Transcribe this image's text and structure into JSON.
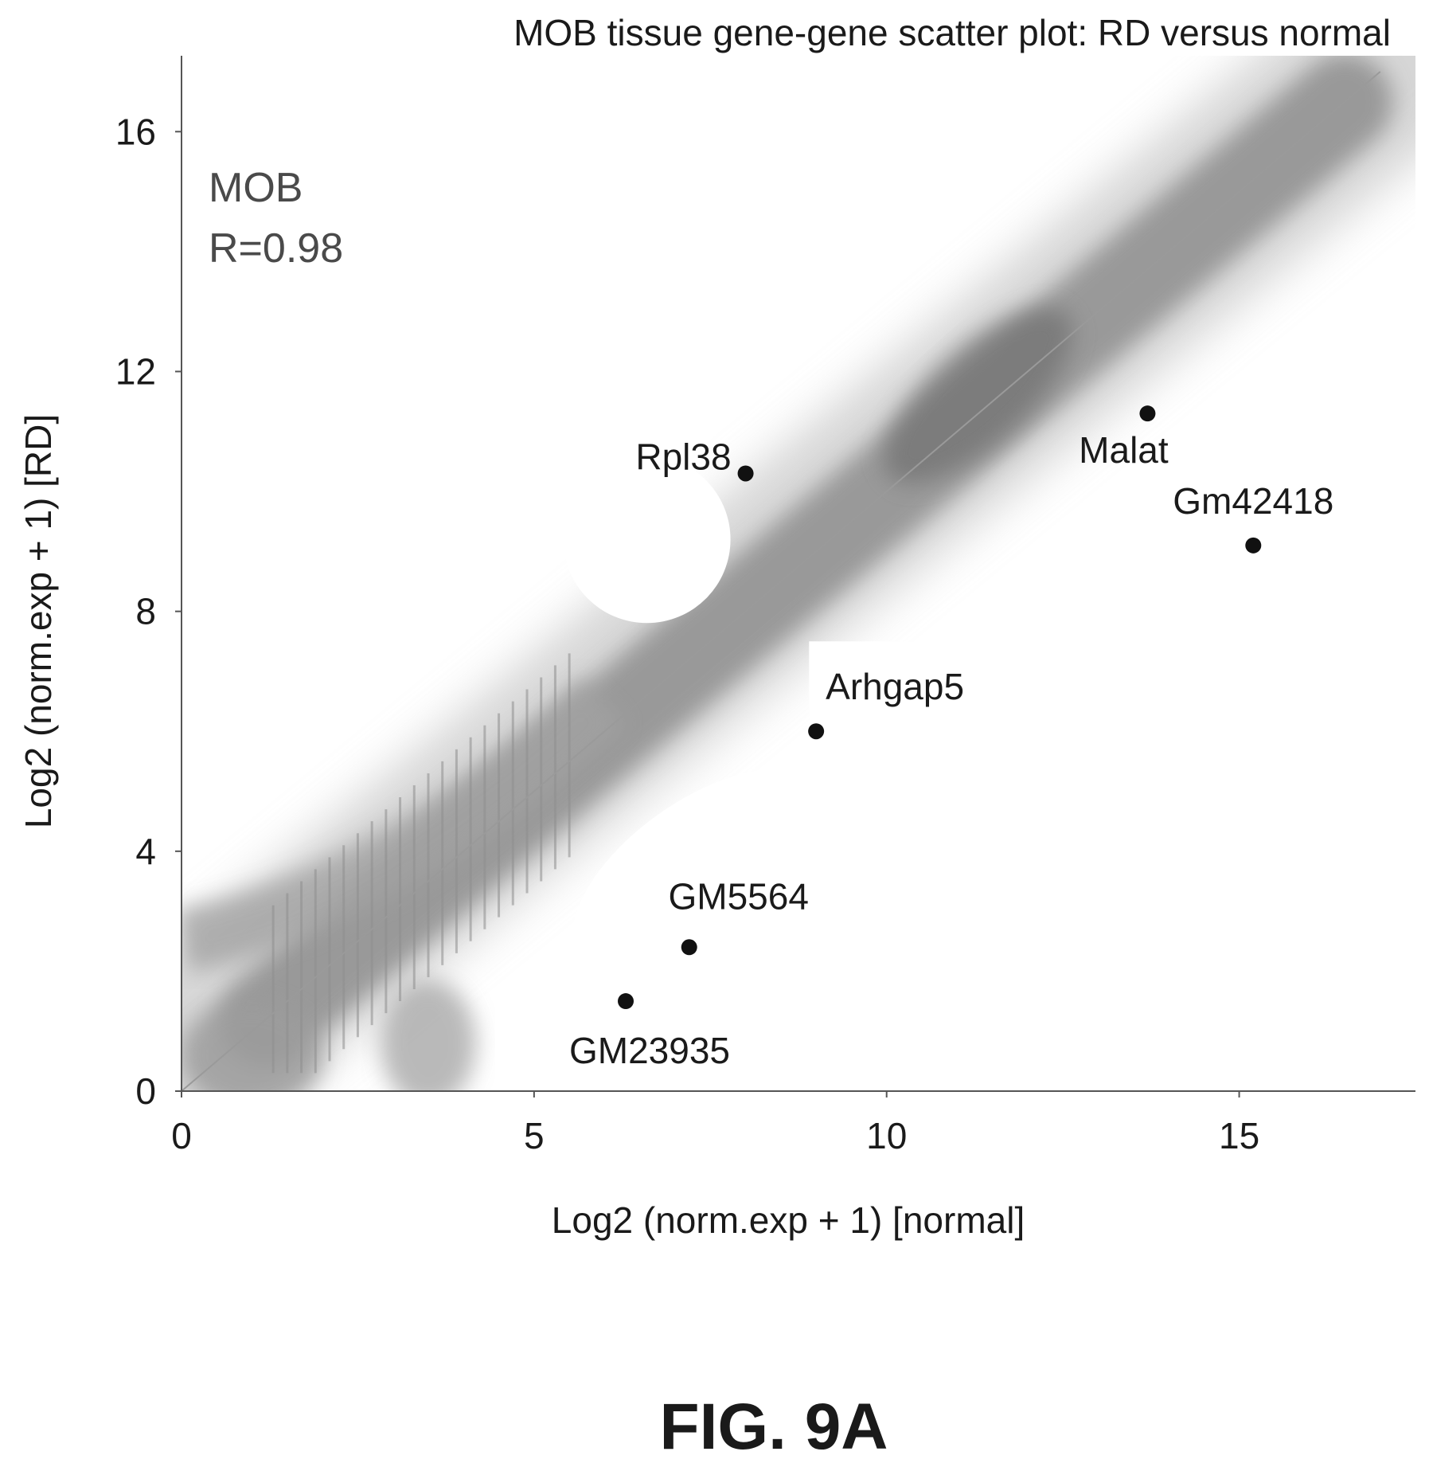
{
  "chart_data": {
    "type": "scatter",
    "title": "MOB tissue gene-gene scatter plot: RD versus normal",
    "annotation": [
      "MOB",
      "R=0.98"
    ],
    "xlabel": "Log2 (norm.exp + 1) [normal]",
    "ylabel": "Log2 (norm.exp + 1) [RD]",
    "xlim": [
      0,
      17.5
    ],
    "ylim": [
      0,
      17
    ],
    "xticks": [
      0,
      5,
      10,
      15
    ],
    "yticks": [
      0,
      4,
      8,
      12,
      16
    ],
    "grid": false,
    "background_cloud": "dense gray gene cloud along diagonal y = x",
    "highlighted_genes": [
      {
        "label": "Rpl38",
        "x": 8.0,
        "y": 10.3
      },
      {
        "label": "Malat",
        "x": 13.7,
        "y": 11.3
      },
      {
        "label": "Gm42418",
        "x": 15.2,
        "y": 9.1
      },
      {
        "label": "Arhgap5",
        "x": 9.0,
        "y": 6.0
      },
      {
        "label": "GM5564",
        "x": 7.2,
        "y": 2.4
      },
      {
        "label": "GM23935",
        "x": 6.3,
        "y": 1.5
      }
    ],
    "colors": {
      "cloud": "#8a8a8a",
      "points": "#111111",
      "diagonal": "#9a9a9a"
    }
  },
  "figure_label": "FIG. 9A"
}
